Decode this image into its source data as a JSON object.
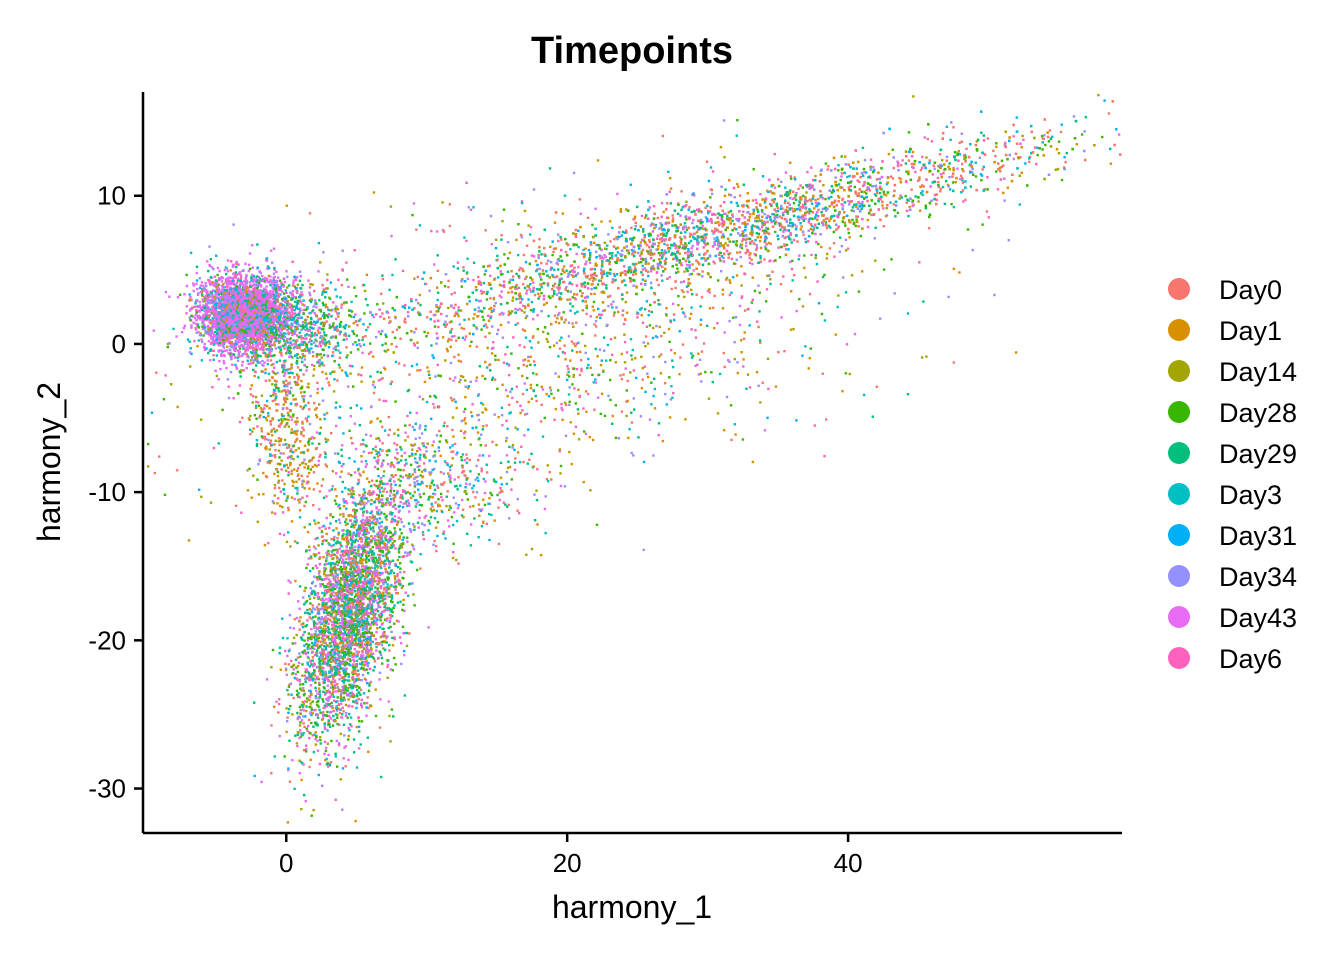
{
  "chart_data": {
    "type": "scatter",
    "title": "Timepoints",
    "xlabel": "harmony_1",
    "ylabel": "harmony_2",
    "xlim": [
      -10.2,
      59.5
    ],
    "ylim": [
      -33,
      17
    ],
    "x_ticks": [
      0,
      20,
      40
    ],
    "y_ticks": [
      10,
      0,
      -10,
      -20,
      -30
    ],
    "x_tick_labels": [
      "0",
      "20",
      "40"
    ],
    "y_tick_labels": [
      "10",
      "0",
      "-10",
      "-20",
      "-30"
    ],
    "grid": false,
    "legend_position": "right",
    "series": [
      {
        "name": "Day0",
        "color": "#F8766D"
      },
      {
        "name": "Day1",
        "color": "#D89000"
      },
      {
        "name": "Day14",
        "color": "#A3A500"
      },
      {
        "name": "Day28",
        "color": "#39B600"
      },
      {
        "name": "Day29",
        "color": "#00BF7D"
      },
      {
        "name": "Day3",
        "color": "#00BFC4"
      },
      {
        "name": "Day31",
        "color": "#00B0F6"
      },
      {
        "name": "Day34",
        "color": "#9590FF"
      },
      {
        "name": "Day43",
        "color": "#E76BF3"
      },
      {
        "name": "Day6",
        "color": "#FF62BC"
      }
    ],
    "clusters": [
      {
        "center": [
          -3,
          2
        ],
        "spread": [
          1.6,
          1.3
        ],
        "angle": 0,
        "count": 3500,
        "weights": [
          0.02,
          0.03,
          0.02,
          0.05,
          0.08,
          0.05,
          0.05,
          0.1,
          0.55,
          0.05
        ]
      },
      {
        "center": [
          1.5,
          1
        ],
        "spread": [
          1.8,
          1.6
        ],
        "angle": 0,
        "count": 500,
        "weights": [
          0.05,
          0.05,
          0.05,
          0.15,
          0.2,
          0.15,
          0.1,
          0.1,
          0.1,
          0.05
        ]
      },
      {
        "center": [
          4.5,
          -18
        ],
        "spread": [
          1.6,
          4.5
        ],
        "angle": -15,
        "count": 3500,
        "weights": [
          0.08,
          0.08,
          0.06,
          0.15,
          0.15,
          0.06,
          0.06,
          0.08,
          0.2,
          0.08
        ]
      },
      {
        "center": [
          32,
          7.8
        ],
        "spread": [
          12,
          1.3
        ],
        "angle": 14,
        "count": 3200,
        "weights": [
          0.2,
          0.12,
          0.05,
          0.12,
          0.1,
          0.08,
          0.08,
          0.1,
          0.07,
          0.08
        ]
      },
      {
        "center": [
          11,
          -9.5
        ],
        "spread": [
          3.5,
          2
        ],
        "angle": -10,
        "count": 400,
        "weights": [
          0.12,
          0.12,
          0.1,
          0.1,
          0.1,
          0.08,
          0.08,
          0.12,
          0.1,
          0.08
        ]
      },
      {
        "center": [
          0,
          -6
        ],
        "spread": [
          1.2,
          3.5
        ],
        "angle": 10,
        "count": 450,
        "weights": [
          0.15,
          0.25,
          0.15,
          0.1,
          0.05,
          0.05,
          0.05,
          0.05,
          0.05,
          0.1
        ]
      },
      {
        "center": [
          18,
          0
        ],
        "spread": [
          12,
          4.5
        ],
        "angle": 15,
        "count": 1500,
        "weights": [
          0.15,
          0.2,
          0.1,
          0.1,
          0.08,
          0.06,
          0.06,
          0.1,
          0.05,
          0.1
        ]
      }
    ]
  }
}
